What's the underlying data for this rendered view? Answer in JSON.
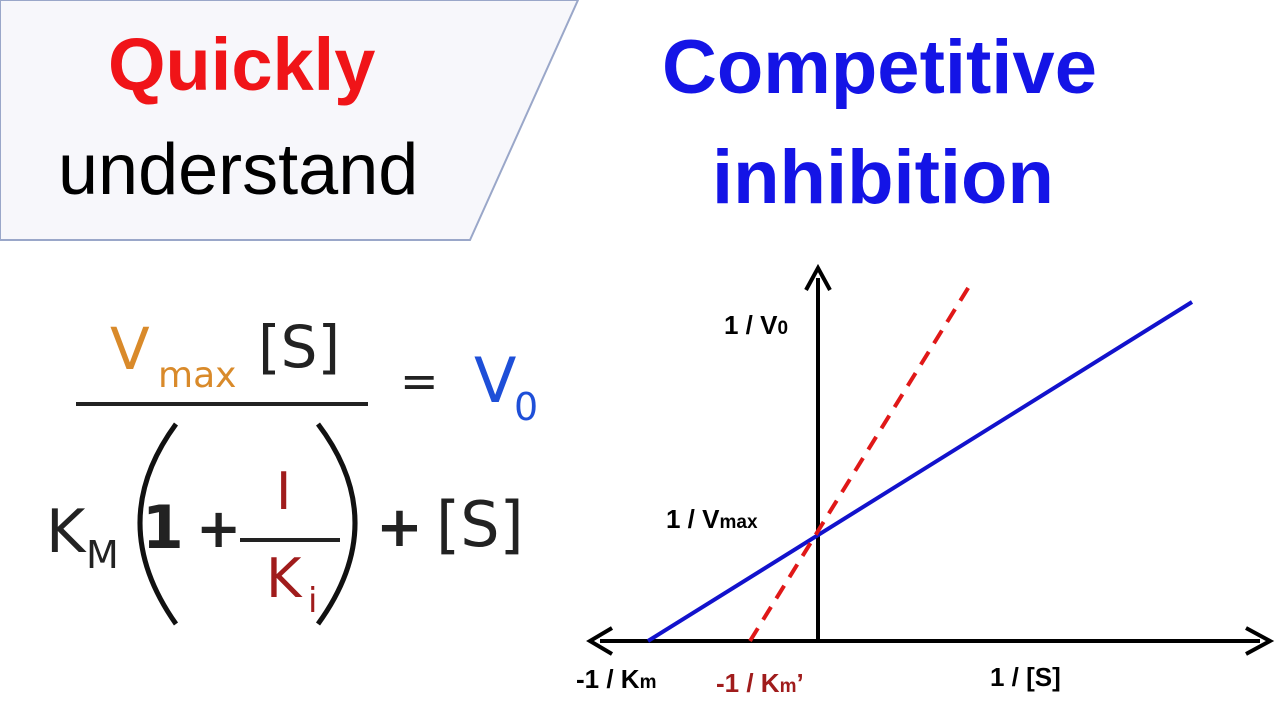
{
  "banner": {
    "line1": "Quickly",
    "line2": "understand",
    "line1_color": "#f01418",
    "background": "#f7f7fb",
    "border_color": "#9aa7c9"
  },
  "title": {
    "line1": "Competitive",
    "line2": "inhibition",
    "color": "#1414e6"
  },
  "equation": {
    "numerator_v": "V",
    "numerator_sub": "max",
    "numerator_s": "[S]",
    "equals": "=",
    "result_v": "V",
    "result_sub": "0",
    "km": "K",
    "km_sub": "M",
    "one": "1",
    "plus": "+",
    "inhibitor": "I",
    "ki": "K",
    "ki_sub": "i",
    "plus2": "+",
    "denominator_s": "[S]",
    "colors": {
      "vmax": "#d98a2a",
      "v0": "#1e4fd8",
      "inhibitor": "#a01c1c"
    }
  },
  "graph": {
    "y_axis_label": "1 / V",
    "y_axis_sub": "0",
    "intercept_label": "1 / V",
    "intercept_sub": "max",
    "x_intercept_label": "-1 / K",
    "x_intercept_sub": "m",
    "x_intercept_inhib_label": "-1 / K",
    "x_intercept_inhib_sub": "m",
    "x_intercept_inhib_suffix": "’",
    "x_axis_label": "1 / [S]",
    "lines": [
      {
        "name": "uninhibited",
        "style": "solid",
        "color": "#1212cc"
      },
      {
        "name": "competitive",
        "style": "dashed",
        "color": "#e01818"
      }
    ]
  }
}
